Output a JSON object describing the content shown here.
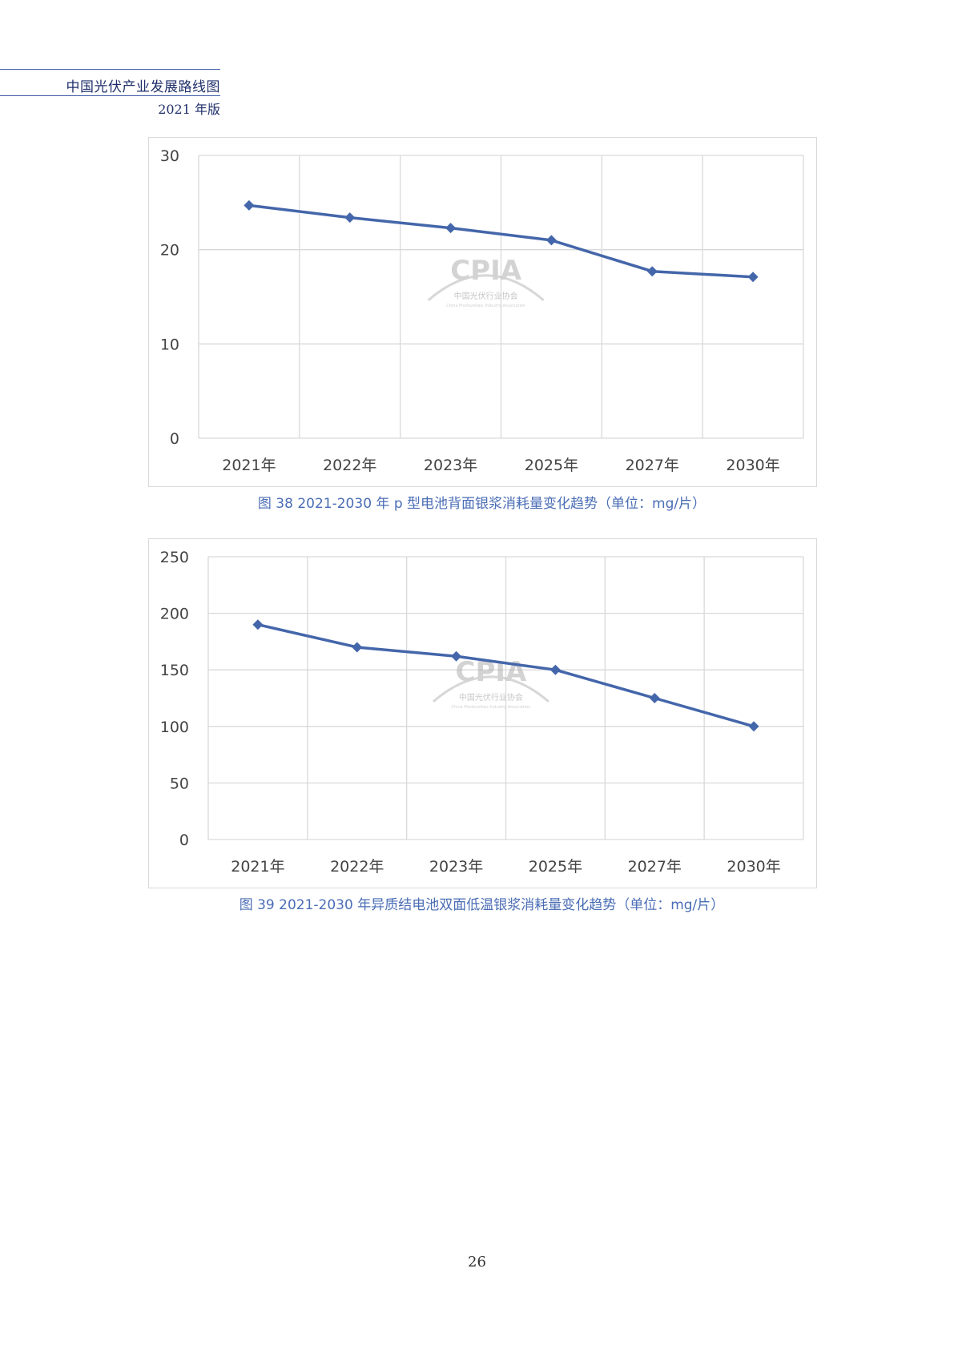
{
  "header": {
    "title": "中国光伏产业发展路线图",
    "edition": "2021 年版"
  },
  "watermark": {
    "logo": "CPIA",
    "org": "中国光伏行业协会",
    "org_en": "China Photovoltaic Industry Association"
  },
  "colors": {
    "series": "#4466aa",
    "caption": "#4a6db5",
    "grid": "#d9d9d9",
    "header": "#1f2f6b"
  },
  "chart_data": [
    {
      "type": "line",
      "categories": [
        "2021年",
        "2022年",
        "2023年",
        "2025年",
        "2027年",
        "2030年"
      ],
      "series": [
        {
          "values": [
            24.7,
            23.4,
            22.3,
            21.0,
            17.7,
            17.1
          ]
        }
      ],
      "ylim": [
        0,
        30
      ],
      "yticks": [
        0,
        10,
        20,
        30
      ],
      "grid": true,
      "caption": "图 38    2021-2030 年 p 型电池背面银浆消耗量变化趋势（单位：mg/片）"
    },
    {
      "type": "line",
      "categories": [
        "2021年",
        "2022年",
        "2023年",
        "2025年",
        "2027年",
        "2030年"
      ],
      "series": [
        {
          "values": [
            190,
            170,
            162,
            150,
            125,
            100
          ]
        }
      ],
      "ylim": [
        0,
        250
      ],
      "yticks": [
        0,
        50,
        100,
        150,
        200,
        250
      ],
      "grid": true,
      "caption": "图 39    2021-2030 年异质结电池双面低温银浆消耗量变化趋势（单位：mg/片）"
    }
  ],
  "page_number": "26"
}
